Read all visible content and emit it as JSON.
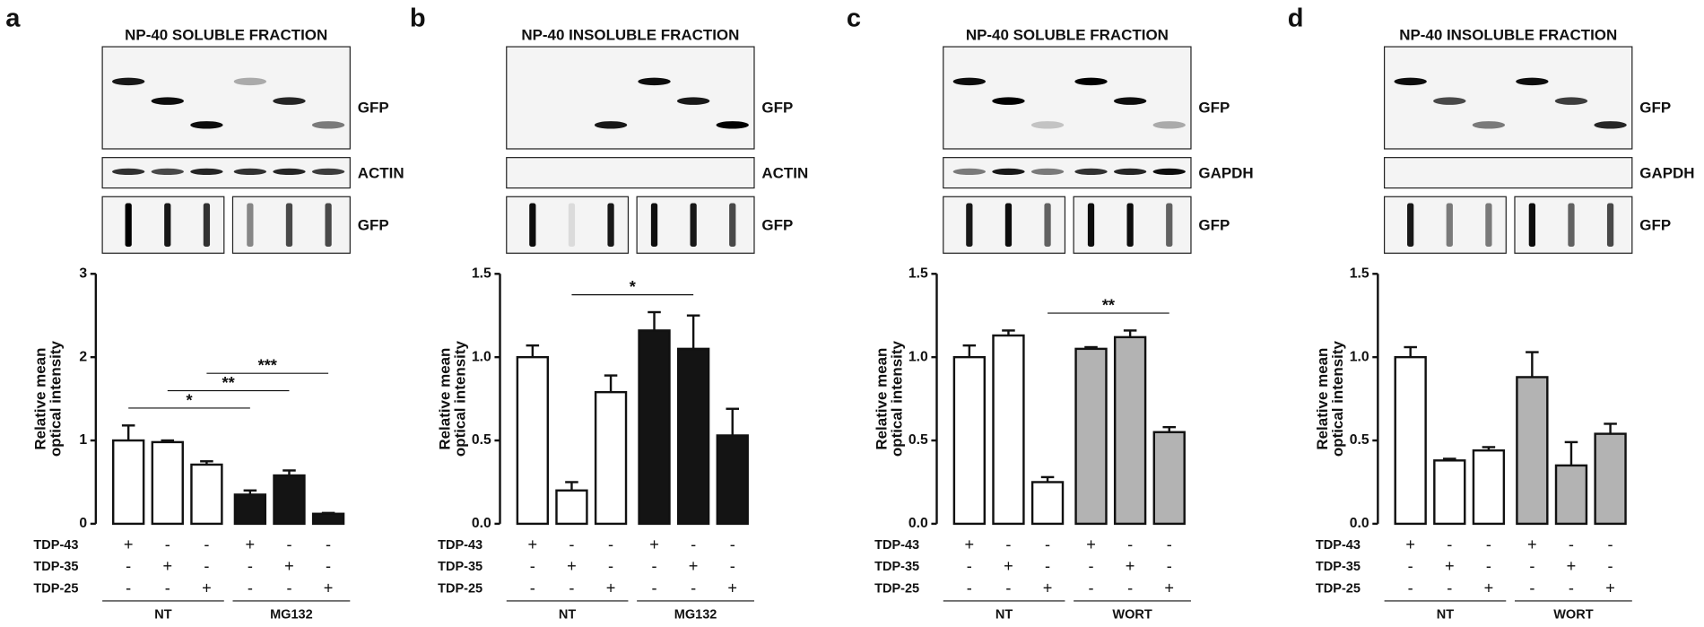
{
  "chart_data": [
    {
      "type": "bar",
      "panel": "a",
      "blot_title": "NP-40 SOLUBLE FRACTION",
      "blot_labels": [
        "GFP",
        "ACTIN",
        "GFP"
      ],
      "y_label": [
        "Relative mean",
        "optical intensity"
      ],
      "ylim": [
        0,
        3
      ],
      "yticks": [
        0,
        1,
        2,
        3
      ],
      "values": [
        1.0,
        0.98,
        0.71,
        0.35,
        0.58,
        0.12
      ],
      "errors": [
        0.18,
        0.02,
        0.04,
        0.05,
        0.06,
        0.01
      ],
      "conditions": [
        {
          "name": "TDP-43",
          "marks": [
            "+",
            "-",
            "-",
            "+",
            "-",
            "-"
          ]
        },
        {
          "name": "TDP-35",
          "marks": [
            "-",
            "+",
            "-",
            "-",
            "+",
            "-"
          ]
        },
        {
          "name": "TDP-25",
          "marks": [
            "-",
            "-",
            "+",
            "-",
            "-",
            "+"
          ]
        }
      ],
      "groups": [
        "NT",
        "MG132"
      ],
      "group_colors": [
        "#ffffff",
        "#141414"
      ],
      "significance": [
        {
          "from": 0,
          "to": 3,
          "label": "*"
        },
        {
          "from": 1,
          "to": 4,
          "label": "**"
        },
        {
          "from": 2,
          "to": 5,
          "label": "***"
        }
      ]
    },
    {
      "type": "bar",
      "panel": "b",
      "blot_title": "NP-40 INSOLUBLE FRACTION",
      "blot_labels": [
        "GFP",
        "ACTIN",
        "GFP"
      ],
      "y_label": [
        "Relative mean",
        "optical intensity"
      ],
      "ylim": [
        0,
        1.5
      ],
      "yticks": [
        {
          "value": 0,
          "label": "0.0"
        },
        0.5,
        {
          "value": 1,
          "label": "1.0"
        },
        1.5
      ],
      "values": [
        1.0,
        0.2,
        0.79,
        1.16,
        1.05,
        0.53
      ],
      "errors": [
        0.07,
        0.05,
        0.1,
        0.11,
        0.2,
        0.16
      ],
      "conditions": [
        {
          "name": "TDP-43",
          "marks": [
            "+",
            "-",
            "-",
            "+",
            "-",
            "-"
          ]
        },
        {
          "name": "TDP-35",
          "marks": [
            "-",
            "+",
            "-",
            "-",
            "+",
            "-"
          ]
        },
        {
          "name": "TDP-25",
          "marks": [
            "-",
            "-",
            "+",
            "-",
            "-",
            "+"
          ]
        }
      ],
      "groups": [
        "NT",
        "MG132"
      ],
      "group_colors": [
        "#ffffff",
        "#141414"
      ],
      "significance": [
        {
          "from": 1,
          "to": 4,
          "label": "*"
        }
      ]
    },
    {
      "type": "bar",
      "panel": "c",
      "blot_title": "NP-40 SOLUBLE FRACTION",
      "blot_labels": [
        "GFP",
        "GAPDH",
        "GFP"
      ],
      "y_label": [
        "Relative mean",
        "optical intensity"
      ],
      "ylim": [
        0,
        1.5
      ],
      "yticks": [
        {
          "value": 0,
          "label": "0.0"
        },
        0.5,
        {
          "value": 1,
          "label": "1.0"
        },
        1.5
      ],
      "values": [
        1.0,
        1.13,
        0.25,
        1.05,
        1.12,
        0.55
      ],
      "errors": [
        0.07,
        0.03,
        0.03,
        0.01,
        0.04,
        0.03
      ],
      "conditions": [
        {
          "name": "TDP-43",
          "marks": [
            "+",
            "-",
            "-",
            "+",
            "-",
            "-"
          ]
        },
        {
          "name": "TDP-35",
          "marks": [
            "-",
            "+",
            "-",
            "-",
            "+",
            "-"
          ]
        },
        {
          "name": "TDP-25",
          "marks": [
            "-",
            "-",
            "+",
            "-",
            "-",
            "+"
          ]
        }
      ],
      "groups": [
        "NT",
        "WORT"
      ],
      "group_colors": [
        "#ffffff",
        "#b3b3b3"
      ],
      "significance": [
        {
          "from": 2,
          "to": 5,
          "label": "**"
        }
      ]
    },
    {
      "type": "bar",
      "panel": "d",
      "blot_title": "NP-40 INSOLUBLE FRACTION",
      "blot_labels": [
        "GFP",
        "GAPDH",
        "GFP"
      ],
      "y_label": [
        "Relative mean",
        "optical intensity"
      ],
      "ylim": [
        0,
        1.5
      ],
      "yticks": [
        {
          "value": 0,
          "label": "0.0"
        },
        0.5,
        {
          "value": 1,
          "label": "1.0"
        },
        1.5
      ],
      "values": [
        1.0,
        0.38,
        0.44,
        0.88,
        0.35,
        0.54
      ],
      "errors": [
        0.06,
        0.01,
        0.02,
        0.15,
        0.14,
        0.06
      ],
      "conditions": [
        {
          "name": "TDP-43",
          "marks": [
            "+",
            "-",
            "-",
            "+",
            "-",
            "-"
          ]
        },
        {
          "name": "TDP-35",
          "marks": [
            "-",
            "+",
            "-",
            "-",
            "+",
            "-"
          ]
        },
        {
          "name": "TDP-25",
          "marks": [
            "-",
            "-",
            "+",
            "-",
            "-",
            "+"
          ]
        }
      ],
      "groups": [
        "NT",
        "WORT"
      ],
      "group_colors": [
        "#ffffff",
        "#b3b3b3"
      ],
      "significance": []
    }
  ]
}
